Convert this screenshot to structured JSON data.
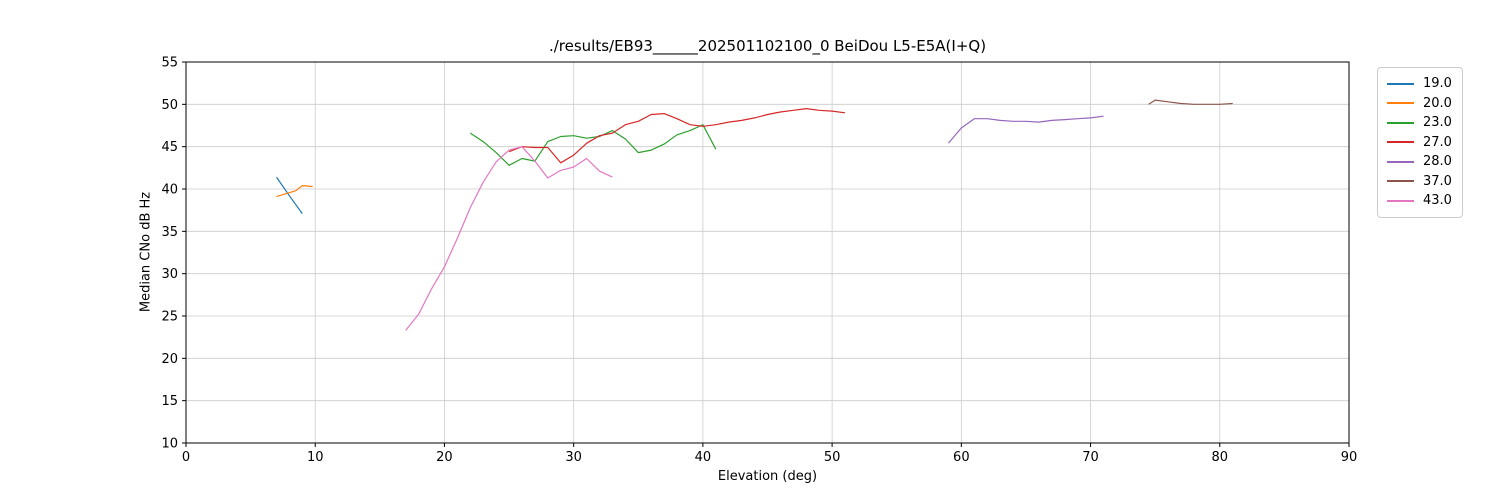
{
  "chart_data": {
    "type": "line",
    "title": "./results/EB93______202501102100_0 BeiDou L5-E5A(I+Q)",
    "xlabel": "Elevation (deg)",
    "ylabel": "Median CNo dB Hz",
    "xlim": [
      0,
      90
    ],
    "ylim": [
      10,
      55
    ],
    "xticks": [
      0,
      10,
      20,
      30,
      40,
      50,
      60,
      70,
      80,
      90
    ],
    "yticks": [
      10,
      15,
      20,
      25,
      30,
      35,
      40,
      45,
      50,
      55
    ],
    "grid": true,
    "grid_color": "#cccccc",
    "axes_color": "#000000",
    "legend_position": "outside-right",
    "series": [
      {
        "name": "19.0",
        "color": "#1f77b4",
        "x": [
          7,
          8,
          9
        ],
        "y": [
          41.4,
          39.2,
          37.1
        ]
      },
      {
        "name": "20.0",
        "color": "#ff7f0e",
        "x": [
          7,
          8.5,
          9,
          9.8
        ],
        "y": [
          39.1,
          39.8,
          40.4,
          40.3
        ]
      },
      {
        "name": "23.0",
        "color": "#2ca02c",
        "x": [
          22,
          23,
          24,
          25,
          26,
          27,
          28,
          29,
          30,
          31,
          32,
          33,
          34,
          35,
          36,
          37,
          38,
          39,
          40,
          41
        ],
        "y": [
          46.6,
          45.6,
          44.3,
          42.8,
          43.6,
          43.3,
          45.6,
          46.2,
          46.3,
          46.0,
          46.2,
          46.9,
          45.9,
          44.3,
          44.6,
          45.3,
          46.4,
          46.9,
          47.6,
          44.7
        ]
      },
      {
        "name": "27.0",
        "color": "#d62728",
        "x": [
          25,
          26,
          27,
          28,
          29,
          30,
          31,
          32,
          33,
          34,
          35,
          36,
          37,
          38,
          39,
          40,
          41,
          42,
          43,
          44,
          45,
          46,
          47,
          48,
          49,
          50,
          51
        ],
        "y": [
          44.4,
          45.0,
          44.9,
          44.9,
          43.1,
          44.0,
          45.4,
          46.3,
          46.6,
          47.6,
          48.0,
          48.8,
          48.9,
          48.3,
          47.6,
          47.4,
          47.6,
          47.9,
          48.1,
          48.4,
          48.8,
          49.1,
          49.3,
          49.5,
          49.3,
          49.2,
          49.0
        ]
      },
      {
        "name": "28.0",
        "color": "#9467bd",
        "x": [
          59,
          60,
          61,
          62,
          63,
          64,
          65,
          66,
          67,
          68,
          69,
          70,
          71
        ],
        "y": [
          45.4,
          47.2,
          48.3,
          48.3,
          48.1,
          48.0,
          48.0,
          47.9,
          48.1,
          48.2,
          48.3,
          48.4,
          48.6
        ]
      },
      {
        "name": "37.0",
        "color": "#8c564b",
        "x": [
          74.5,
          75,
          76,
          77,
          78,
          79,
          80,
          81
        ],
        "y": [
          50.0,
          50.5,
          50.3,
          50.1,
          50.0,
          50.0,
          50.0,
          50.1
        ]
      },
      {
        "name": "43.0",
        "color": "#e377c2",
        "x": [
          17,
          18,
          19,
          20,
          21,
          22,
          23,
          24,
          25,
          26,
          27,
          28,
          29,
          30,
          31,
          32,
          33
        ],
        "y": [
          23.3,
          25.2,
          28.2,
          30.8,
          34.2,
          37.8,
          40.8,
          43.2,
          44.6,
          45.0,
          43.3,
          41.3,
          42.2,
          42.6,
          43.6,
          42.1,
          41.4
        ]
      }
    ]
  }
}
